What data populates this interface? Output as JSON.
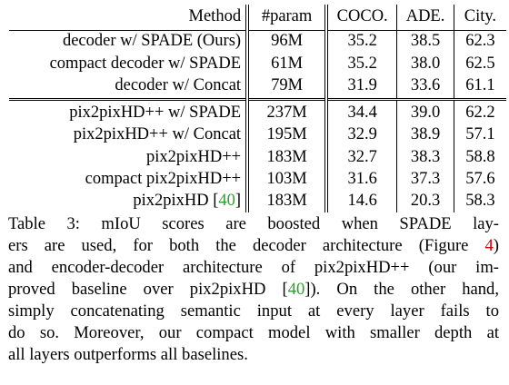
{
  "table": {
    "headers": [
      "Method",
      "#param",
      "COCO.",
      "ADE.",
      "City."
    ],
    "rows": [
      {
        "method": "decoder w/ SPADE (Ours)",
        "method_bold": true,
        "param": "96M",
        "coco": "35.2",
        "coco_bold": true,
        "ade": "38.5",
        "ade_bold": false,
        "city": "62.3",
        "city_bold": false
      },
      {
        "method": "compact decoder w/ SPADE",
        "method_bold": true,
        "param": "61M",
        "coco": "35.2",
        "coco_bold": true,
        "ade": "38.0",
        "ade_bold": false,
        "city": "62.5",
        "city_bold": true
      },
      {
        "method": "decoder w/ Concat",
        "method_bold": false,
        "param": "79M",
        "coco": "31.9",
        "coco_bold": false,
        "ade": "33.6",
        "ade_bold": false,
        "city": "61.1",
        "city_bold": false
      },
      {
        "method": "pix2pixHD++ w/ SPADE",
        "method_bold": true,
        "param": "237M",
        "coco": "34.4",
        "coco_bold": false,
        "ade": "39.0",
        "ade_bold": true,
        "city": "62.2",
        "city_bold": false
      },
      {
        "method": "pix2pixHD++ w/ Concat",
        "method_bold": false,
        "param": "195M",
        "coco": "32.9",
        "coco_bold": false,
        "ade": "38.9",
        "ade_bold": false,
        "city": "57.1",
        "city_bold": false
      },
      {
        "method": "pix2pixHD++",
        "method_bold": false,
        "param": "183M",
        "coco": "32.7",
        "coco_bold": false,
        "ade": "38.3",
        "ade_bold": false,
        "city": "58.8",
        "city_bold": false
      },
      {
        "method": "compact pix2pixHD++",
        "method_bold": false,
        "param": "103M",
        "coco": "31.6",
        "coco_bold": false,
        "ade": "37.3",
        "ade_bold": false,
        "city": "57.6",
        "city_bold": false
      },
      {
        "method": "pix2pixHD",
        "method_cite": "40",
        "method_bold": false,
        "param": "183M",
        "coco": "14.6",
        "coco_bold": false,
        "ade": "20.3",
        "ade_bold": false,
        "city": "58.3",
        "city_bold": false
      }
    ],
    "group_break_after_row": 2
  },
  "caption": {
    "lines": [
      [
        {
          "t": "Table 3:  mIoU scores are boosted when SPADE lay-"
        }
      ],
      [
        {
          "t": "ers are used, for both the decoder architecture (Figure "
        },
        {
          "t": "4",
          "ref": true
        },
        {
          "t": ")"
        }
      ],
      [
        {
          "t": "and encoder-decoder architecture of pix2pixHD++ (our im-"
        }
      ],
      [
        {
          "t": "proved baseline over pix2pixHD ["
        },
        {
          "t": "40",
          "cite": true
        },
        {
          "t": "]).  On the other hand,"
        }
      ],
      [
        {
          "t": "simply concatenating semantic input at every layer fails to"
        }
      ],
      [
        {
          "t": "do so. Moreover, our compact model with smaller depth at"
        }
      ],
      [
        {
          "t": "all layers outperforms all baselines."
        }
      ]
    ]
  },
  "colors": {
    "citation": "#2ca02c",
    "figure_ref": "#cc0000",
    "text": "#000000"
  }
}
